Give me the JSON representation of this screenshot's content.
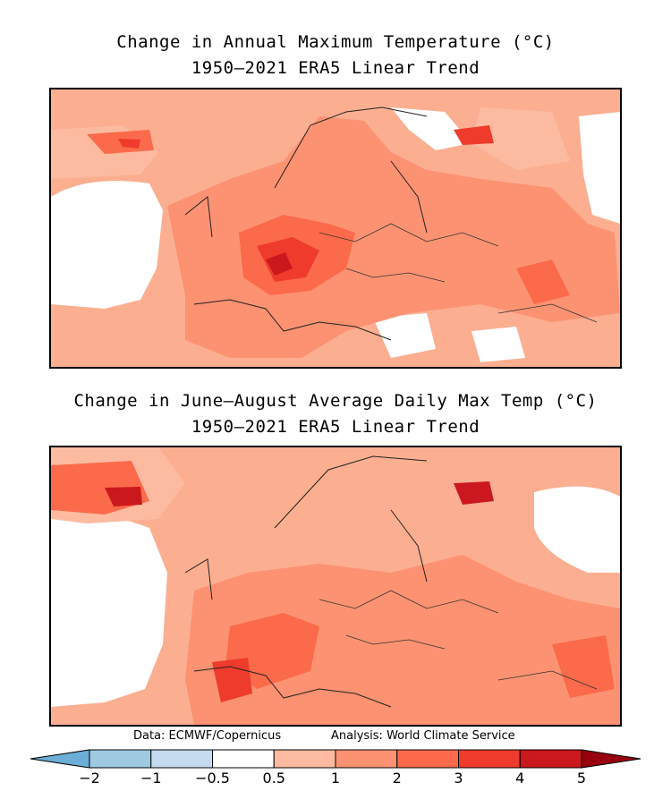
{
  "maps": [
    {
      "title_line1": "Change in Annual Maximum Temperature (°C)",
      "title_line2": "1950–2021 ERA5 Linear Trend"
    },
    {
      "title_line1": "Change in June–August Average Daily Max Temp (°C)",
      "title_line2": "1950–2021 ERA5 Linear Trend"
    }
  ],
  "credits": {
    "data": "Data: ECMWF/Copernicus",
    "analysis": "Analysis: World Climate Service"
  },
  "colorbar": {
    "ticks": [
      "−2",
      "−1",
      "−0.5",
      "0.5",
      "1",
      "2",
      "3",
      "4",
      "5"
    ],
    "colors": [
      "#6baed6",
      "#9ecae1",
      "#c6dbef",
      "#ffffff",
      "#fcbba1",
      "#fc9272",
      "#fb6a4a",
      "#ef3b2c",
      "#cb181d",
      "#99000d"
    ]
  }
}
